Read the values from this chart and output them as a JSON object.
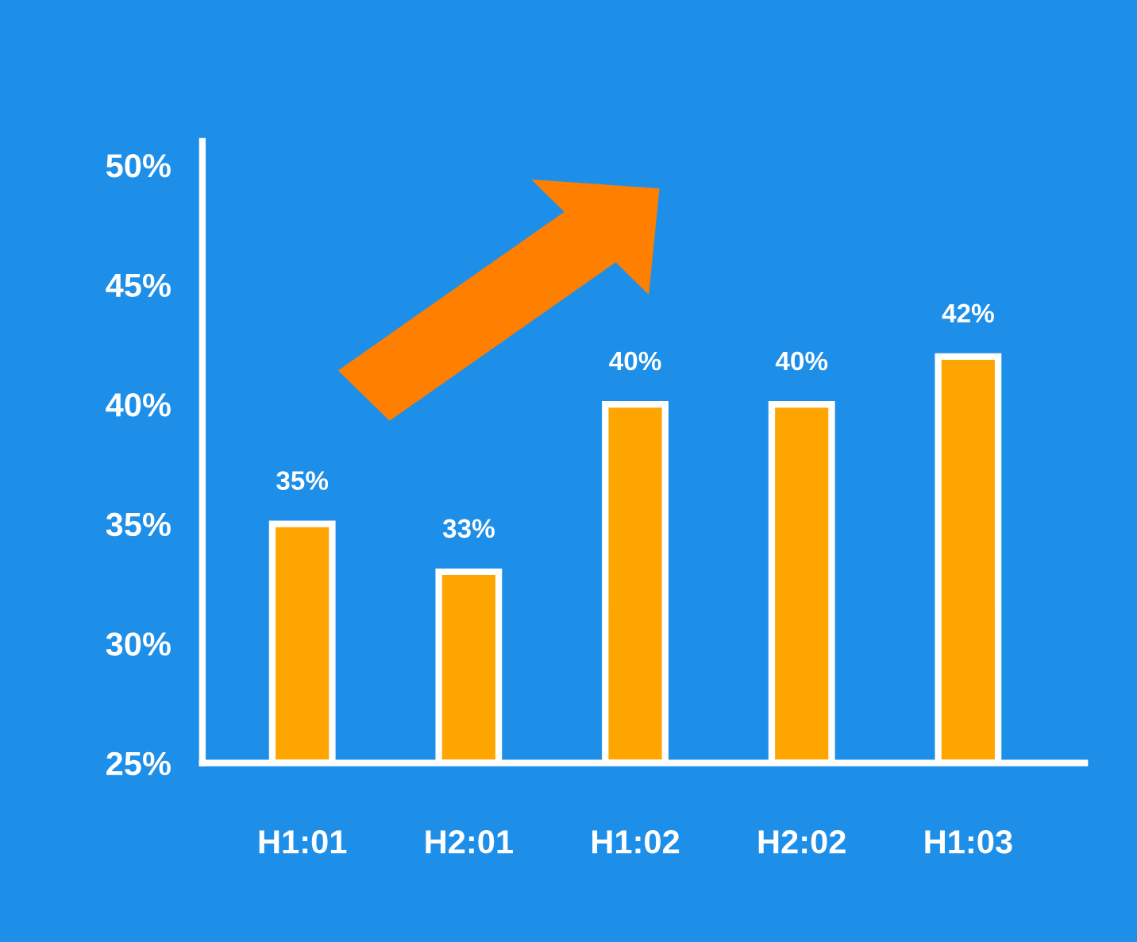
{
  "chart_data": {
    "type": "bar",
    "categories": [
      "H1:01",
      "H2:01",
      "H1:02",
      "H2:02",
      "H1:03"
    ],
    "values": [
      35,
      33,
      40,
      40,
      42
    ],
    "value_labels": [
      "35%",
      "33%",
      "40%",
      "40%",
      "42%"
    ],
    "color": "#ffa500",
    "ylim": [
      25,
      51
    ],
    "yticks": [
      {
        "value": 25,
        "label": "25%"
      },
      {
        "value": 30,
        "label": "30%"
      },
      {
        "value": 35,
        "label": "35%"
      },
      {
        "value": 40,
        "label": "40%"
      },
      {
        "value": 45,
        "label": "45%"
      },
      {
        "value": 50,
        "label": "50%"
      }
    ],
    "grid": false,
    "legend": false
  }
}
